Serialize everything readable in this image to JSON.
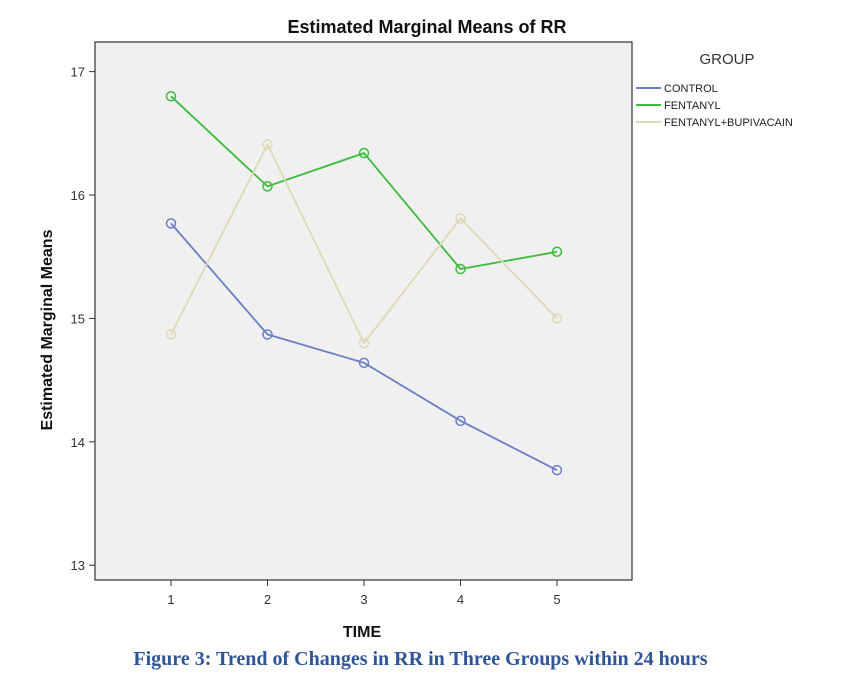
{
  "caption": "Figure 3: Trend of Changes in RR in Three Groups within 24 hours",
  "chart_data": {
    "type": "line",
    "title": "Estimated Marginal Means of RR",
    "xlabel": "TIME",
    "ylabel": "Estimated Marginal Means",
    "x": [
      1,
      2,
      3,
      4,
      5
    ],
    "x_tick_labels": [
      "1",
      "2",
      "3",
      "4",
      "5"
    ],
    "y_ticks": [
      13,
      14,
      15,
      16,
      17
    ],
    "ylim": [
      12.88,
      17.24
    ],
    "grid": false,
    "legend_title": "GROUP",
    "legend_position": "right-top",
    "series": [
      {
        "name": "CONTROL",
        "color": "#6b7fc4",
        "values": [
          15.77,
          14.87,
          14.64,
          14.17,
          13.77
        ]
      },
      {
        "name": "FENTANYL",
        "color": "#3dbb3d",
        "values": [
          16.8,
          16.07,
          16.34,
          15.4,
          15.54
        ]
      },
      {
        "name": "FENTANYL+BUPIVACAIN",
        "color": "#ddd9b4",
        "values": [
          14.87,
          16.41,
          14.8,
          15.81,
          15.0
        ]
      }
    ]
  }
}
